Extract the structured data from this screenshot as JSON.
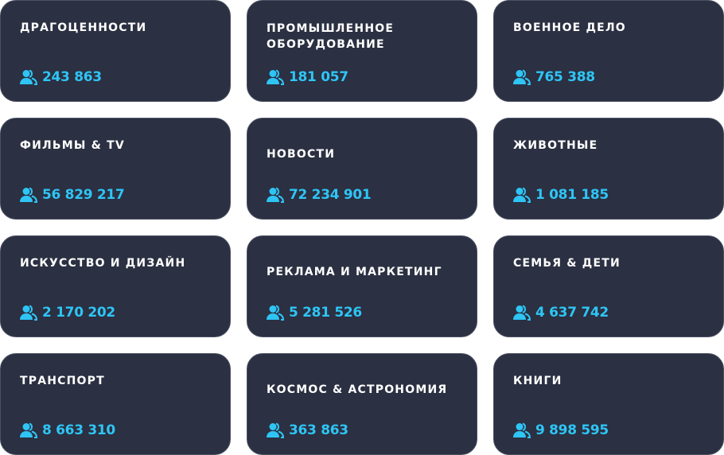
{
  "accent_color": "#2ec5f5",
  "card_color": "#2b3042",
  "count_icon": "users-icon",
  "categories": [
    {
      "title": "Драгоценности",
      "count": "243 863"
    },
    {
      "title": "Промышленное оборудование",
      "count": "181 057"
    },
    {
      "title": "Военное дело",
      "count": "765 388"
    },
    {
      "title": "Фильмы & TV",
      "count": "56 829 217"
    },
    {
      "title": "Новости",
      "count": "72 234 901"
    },
    {
      "title": "Животные",
      "count": "1 081 185"
    },
    {
      "title": "Искусство и дизайн",
      "count": "2 170 202"
    },
    {
      "title": "Реклама и маркетинг",
      "count": "5 281 526"
    },
    {
      "title": "Семья & дети",
      "count": "4 637 742"
    },
    {
      "title": "Транспорт",
      "count": "8 663 310"
    },
    {
      "title": "Космос & астрономия",
      "count": "363 863"
    },
    {
      "title": "Книги",
      "count": "9 898 595"
    }
  ]
}
